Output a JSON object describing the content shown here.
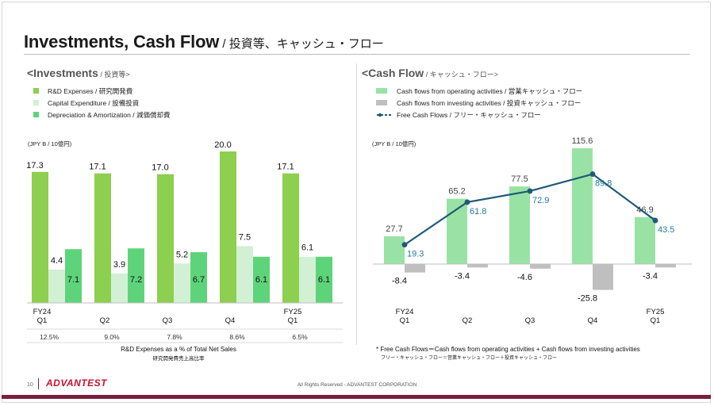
{
  "page": {
    "title_en": "Investments, Cash Flow",
    "title_jp": " / 投資等、キャッシュ・フロー",
    "page_number": "10",
    "logo": "ADVANTEST",
    "copyright": "All Rights Reserved - ADVANTEST CORPORATION"
  },
  "investments": {
    "section_title": "<Investments",
    "section_title_jp": " / 投資等>",
    "legend": [
      {
        "label": "R&D Expenses / 研究開発費",
        "color": "#8dcf4e"
      },
      {
        "label": "Capital Expenditure / 設備投資",
        "color": "#d2f0d4"
      },
      {
        "label": "Depreciation & Amortization / 減価償却費",
        "color": "#5ed47a"
      }
    ],
    "unit": "(JPY B / 10億円)",
    "rd_ratio_label": "R&D Expenses as a % of Total Net Sales",
    "rd_ratio_label_jp": "研究開発費売上高比率"
  },
  "cashflow": {
    "section_title": "<Cash Flow",
    "section_title_jp": " / キャッシュ・フロー>",
    "legend": [
      {
        "label": "Cash flows from operating activities / 営業キャッシュ・フロー",
        "color": "#98e3a4"
      },
      {
        "label": "Cash flows from investing activities / 投資キャッシュ・フロー",
        "color": "#bfbfbf"
      },
      {
        "label": "Free Cash Flows / フリー・キャッシュ・フロー",
        "color": "#1f5a78"
      }
    ],
    "unit": "(JPY B / 10億円)",
    "note": "* Free Cash Flows＝Cash flows from operating activities + Cash flows from investing activities",
    "note_jp": "フリー・キャッシュ・フロー＝営業キャッシュ・フロー＋投資キャッシュ・フロー"
  },
  "chart_data": [
    {
      "type": "bar",
      "categories": [
        "FY24 Q1",
        "Q2",
        "Q3",
        "Q4",
        "FY25 Q1"
      ],
      "series": [
        {
          "name": "R&D Expenses / 研究開発費",
          "values": [
            17.3,
            17.1,
            17.0,
            20.0,
            17.1
          ],
          "color": "#8dcf4e"
        },
        {
          "name": "Capital Expenditure / 設備投資",
          "values": [
            4.4,
            3.9,
            5.2,
            7.5,
            6.1
          ],
          "color": "#d2f0d4"
        },
        {
          "name": "Depreciation & Amortization / 減価償却費",
          "values": [
            7.1,
            7.2,
            6.7,
            6.1,
            6.1
          ],
          "color": "#5ed47a"
        }
      ],
      "rd_ratio": [
        "12.5%",
        "9.0%",
        "7.8%",
        "8.6%",
        "6.5%"
      ],
      "ylabel": "(JPY B / 10億円)",
      "ylim": [
        0,
        20
      ]
    },
    {
      "type": "bar",
      "categories": [
        "FY24 Q1",
        "Q2",
        "Q3",
        "Q4",
        "FY25 Q1"
      ],
      "series": [
        {
          "name": "Cash flows from operating activities / 営業キャッシュ・フロー",
          "values": [
            27.7,
            65.2,
            77.5,
            115.6,
            46.9
          ],
          "color": "#98e3a4"
        },
        {
          "name": "Cash flows from investing activities / 投資キャッシュ・フロー",
          "values": [
            -8.4,
            -3.4,
            -4.6,
            -25.8,
            -3.4
          ],
          "color": "#bfbfbf"
        },
        {
          "name": "Free Cash Flows / フリー・キャッシュ・フロー",
          "type": "line",
          "values": [
            19.3,
            61.8,
            72.9,
            89.8,
            43.5
          ],
          "color": "#1f5a78"
        }
      ],
      "ylabel": "(JPY B / 10億円)",
      "ylim": [
        -30,
        120
      ]
    }
  ]
}
